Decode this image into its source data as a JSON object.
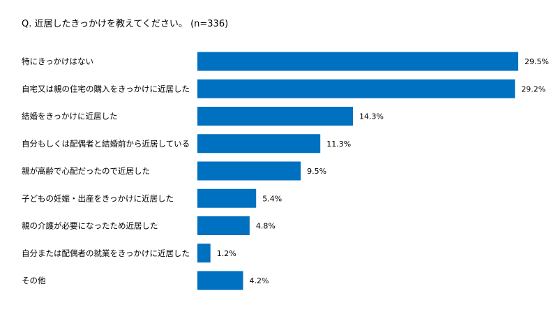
{
  "question": "Q. 近居したきっかけを教えてください。 (n=336)",
  "chart_data": {
    "type": "bar",
    "orientation": "horizontal",
    "categories": [
      "特にきっかけはない",
      "自宅又は親の住宅の購入をきっかけに近居した",
      "結婚をきっかけに近居した",
      "自分もしくは配偶者と結婚前から近居している",
      "親が高齢で心配だったので近居した",
      "子どもの妊娠・出産をきっかけに近居した",
      "親の介護が必要になったため近居した",
      "自分または配偶者の就業をきっかけに近居した",
      "その他"
    ],
    "values": [
      29.5,
      29.2,
      14.3,
      11.3,
      9.5,
      5.4,
      4.8,
      1.2,
      4.2
    ],
    "value_labels": [
      "29.5%",
      "29.2%",
      "14.3%",
      "11.3%",
      "9.5%",
      "5.4%",
      "4.8%",
      "1.2%",
      "4.2%"
    ],
    "bar_color": "#0070c0",
    "xlim": [
      0,
      29.5
    ],
    "grid": false,
    "legend": false
  }
}
